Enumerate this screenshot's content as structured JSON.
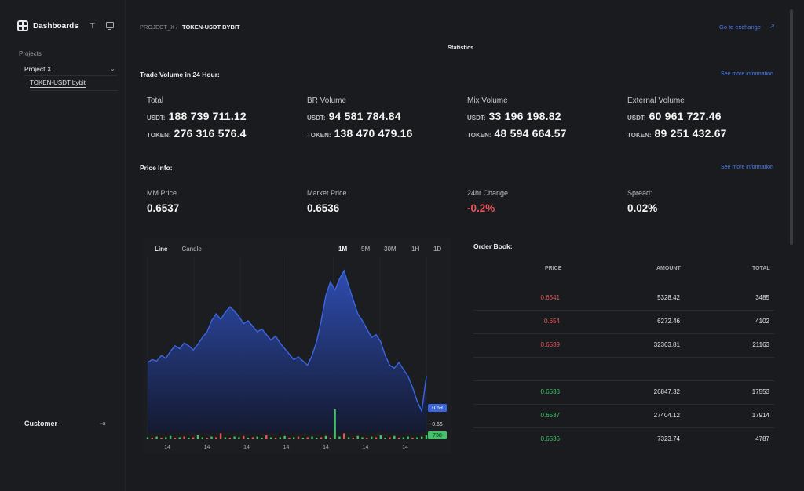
{
  "sidebar": {
    "brand": "Dashboards",
    "projects_label": "Projects",
    "project": "Project X",
    "sub_item": "TOKEN-USDT bybit",
    "customer": "Customer"
  },
  "topbar": {
    "crumb_parent": "PROJECT_X /",
    "crumb_current": "TOKEN-USDT BYBIT",
    "go_to_exchange": "Go to exchange",
    "section_title": "Statistics"
  },
  "trade_volume": {
    "title": "Trade Volume in 24 Hour:",
    "more": "See more information",
    "cards": [
      {
        "label": "Total",
        "usdt_label": "USDT:",
        "usdt": "188 739 711.12",
        "token_label": "TOKEN:",
        "token": "276 316 576.4"
      },
      {
        "label": "BR Volume",
        "usdt_label": "USDT:",
        "usdt": "94 581 784.84",
        "token_label": "TOKEN:",
        "token": "138 470 479.16"
      },
      {
        "label": "Mix Volume",
        "usdt_label": "USDT:",
        "usdt": "33 196 198.82",
        "token_label": "TOKEN:",
        "token": "48 594 664.57"
      },
      {
        "label": "External Volume",
        "usdt_label": "USDT:",
        "usdt": "60 961 727.46",
        "token_label": "TOKEN:",
        "token": "89 251 432.67"
      }
    ]
  },
  "price_info": {
    "title": "Price Info:",
    "more": "See more information",
    "items": [
      {
        "label": "MM Price",
        "value": "0.6537"
      },
      {
        "label": "Market Price",
        "value": "0.6536"
      },
      {
        "label": "24hr Change",
        "value": "-0.2%"
      },
      {
        "label": "Spread:",
        "value": "0.02%"
      }
    ]
  },
  "chart": {
    "tabs": [
      "Line",
      "Candle"
    ],
    "active_tab": "Line",
    "timeframes": [
      "1M",
      "5M",
      "30M",
      "1H",
      "1D"
    ],
    "active_timeframe": "1M",
    "x_ticks": [
      "14",
      "14",
      "14",
      "14",
      "14",
      "14",
      "14"
    ],
    "price_tag": "0.69",
    "price_mark": "0.66",
    "volume_tag": "738",
    "colors": {
      "line": "#3b66e0",
      "fill_top": "#2f4fb8",
      "up": "#46c36a",
      "down": "#e45858",
      "tag": "#3b66e0",
      "vol_tag": "#46c36a"
    }
  },
  "chart_data": {
    "type": "area",
    "x_labels": [
      "14",
      "14",
      "14",
      "14",
      "14",
      "14",
      "14"
    ],
    "price_series": [
      0.7,
      0.702,
      0.701,
      0.705,
      0.703,
      0.708,
      0.712,
      0.71,
      0.714,
      0.712,
      0.709,
      0.713,
      0.718,
      0.722,
      0.73,
      0.735,
      0.731,
      0.736,
      0.74,
      0.737,
      0.733,
      0.728,
      0.73,
      0.726,
      0.722,
      0.724,
      0.72,
      0.716,
      0.719,
      0.714,
      0.71,
      0.706,
      0.702,
      0.704,
      0.701,
      0.698,
      0.705,
      0.715,
      0.73,
      0.748,
      0.758,
      0.752,
      0.76,
      0.766,
      0.755,
      0.745,
      0.735,
      0.73,
      0.724,
      0.718,
      0.72,
      0.715,
      0.705,
      0.698,
      0.696,
      0.7,
      0.695,
      0.69,
      0.682,
      0.672,
      0.665,
      0.69
    ],
    "volume_series": [
      3,
      2,
      4,
      2,
      3,
      5,
      2,
      3,
      4,
      2,
      3,
      6,
      3,
      2,
      4,
      3,
      9,
      3,
      2,
      4,
      3,
      5,
      2,
      3,
      4,
      2,
      6,
      3,
      2,
      3,
      5,
      2,
      3,
      4,
      2,
      3,
      4,
      2,
      3,
      5,
      2,
      45,
      4,
      9,
      3,
      2,
      5,
      3,
      2,
      4,
      3,
      6,
      2,
      3,
      5,
      2,
      3,
      4,
      2,
      3,
      4,
      6
    ],
    "volume_up": [
      true,
      false,
      true,
      false,
      true,
      true,
      false,
      true,
      false,
      true,
      false,
      true,
      true,
      false,
      true,
      false,
      false,
      true,
      false,
      true,
      true,
      false,
      true,
      false,
      true,
      true,
      false,
      true,
      false,
      true,
      true,
      false,
      true,
      false,
      true,
      false,
      true,
      true,
      false,
      true,
      false,
      true,
      true,
      false,
      true,
      false,
      true,
      true,
      false,
      true,
      false,
      true,
      true,
      false,
      true,
      false,
      true,
      true,
      false,
      true,
      true,
      true
    ],
    "ylim": [
      0.66,
      0.77
    ]
  },
  "order_book": {
    "title": "Order Book:",
    "headers": {
      "price": "PRICE",
      "amount": "AMOUNT",
      "total": "TOTAL"
    },
    "asks": [
      {
        "price": "0.6541",
        "amount": "5328.42",
        "total": "3485"
      },
      {
        "price": "0.654",
        "amount": "6272.46",
        "total": "4102"
      },
      {
        "price": "0.6539",
        "amount": "32363.81",
        "total": "21163"
      }
    ],
    "bids": [
      {
        "price": "0.6538",
        "amount": "26847.32",
        "total": "17553"
      },
      {
        "price": "0.6537",
        "amount": "27404.12",
        "total": "17914"
      },
      {
        "price": "0.6536",
        "amount": "7323.74",
        "total": "4787"
      }
    ]
  }
}
